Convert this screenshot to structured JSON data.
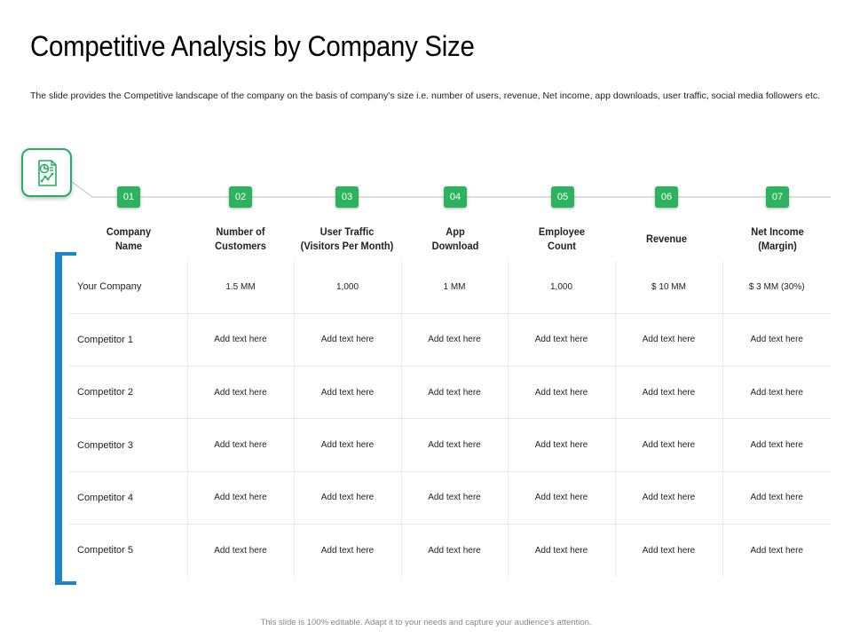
{
  "title": "Competitive Analysis by Company Size",
  "subtitle": "The slide provides the Competitive landscape of the company on the basis of company's size i.e. number of users, revenue, Net income, app downloads, user traffic, social media followers etc.",
  "icon": "presentation-chart-icon",
  "accent_color": "#2db35d",
  "bracket_color": "#1a85cc",
  "steps": [
    "01",
    "02",
    "03",
    "04",
    "05",
    "06",
    "07"
  ],
  "columns": [
    {
      "line1": "Company",
      "line2": "Name"
    },
    {
      "line1": "Number of",
      "line2": "Customers"
    },
    {
      "line1": "User Traffic",
      "line2": "(Visitors Per Month)"
    },
    {
      "line1": "App",
      "line2": "Download"
    },
    {
      "line1": "Employee",
      "line2": "Count"
    },
    {
      "line1": "Revenue",
      "line2": ""
    },
    {
      "line1": "Net Income",
      "line2": "(Margin)"
    }
  ],
  "rows": [
    [
      "Your Company",
      "1.5 MM",
      "1,000",
      "1 MM",
      "1,000",
      "$ 10 MM",
      "$ 3 MM (30%)"
    ],
    [
      "Competitor 1",
      "Add text here",
      "Add text here",
      "Add text here",
      "Add text here",
      "Add text here",
      "Add text here"
    ],
    [
      "Competitor 2",
      "Add text here",
      "Add text here",
      "Add text here",
      "Add text here",
      "Add text here",
      "Add text here"
    ],
    [
      "Competitor 3",
      "Add text here",
      "Add text here",
      "Add text here",
      "Add text here",
      "Add text here",
      "Add text here"
    ],
    [
      "Competitor 4",
      "Add text here",
      "Add text here",
      "Add text here",
      "Add text here",
      "Add text here",
      "Add text here"
    ],
    [
      "Competitor 5",
      "Add text here",
      "Add text here",
      "Add text here",
      "Add text here",
      "Add text here",
      "Add text here"
    ]
  ],
  "footer": "This slide is 100% editable. Adapt it to your needs and capture your audience's attention."
}
